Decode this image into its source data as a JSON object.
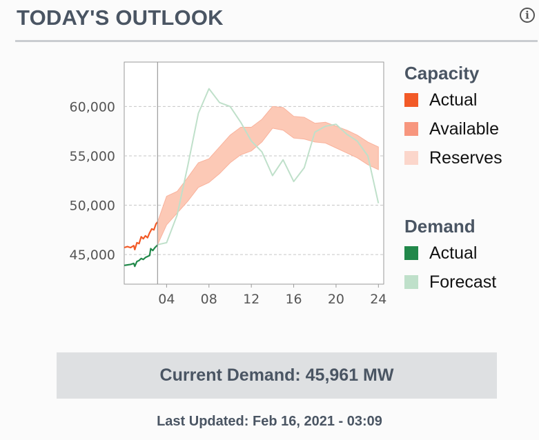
{
  "header": {
    "title": "TODAY'S OUTLOOK",
    "info_icon": "info-icon"
  },
  "legend": {
    "capacity_heading": "Capacity",
    "capacity_items": [
      {
        "label": "Actual",
        "color": "#f25a27"
      },
      {
        "label": "Available",
        "color": "#f7967e"
      },
      {
        "label": "Reserves",
        "color": "#fbd6cb"
      }
    ],
    "demand_heading": "Demand",
    "demand_items": [
      {
        "label": "Actual",
        "color": "#21884a"
      },
      {
        "label": "Forecast",
        "color": "#bfe0ca"
      }
    ]
  },
  "current_demand": "Current Demand: 45,961 MW",
  "last_updated": "Last Updated: Feb 16, 2021 - 03:09",
  "chart_data": {
    "type": "line",
    "title": "",
    "xlabel": "",
    "ylabel": "",
    "xlim": [
      0,
      24.5
    ],
    "ylim": [
      42000,
      64500
    ],
    "x_ticks": [
      4,
      8,
      12,
      16,
      20,
      24
    ],
    "x_tick_labels": [
      "04",
      "08",
      "12",
      "16",
      "20",
      "24"
    ],
    "y_ticks": [
      45000,
      50000,
      55000,
      60000
    ],
    "y_tick_labels": [
      "45,000",
      "50,000",
      "55,000",
      "60,000"
    ],
    "grid": "horizontal dashed",
    "current_time_marker": 3.15,
    "series": [
      {
        "name": "Actual",
        "group": "Capacity",
        "color": "#f25a27",
        "x": [
          0,
          0.3,
          0.6,
          0.9,
          1.0,
          1.2,
          1.4,
          1.6,
          1.8,
          2.0,
          2.2,
          2.4,
          2.6,
          2.8,
          3.0,
          3.15
        ],
        "y": [
          45700,
          45800,
          45700,
          45900,
          45500,
          46200,
          46100,
          46800,
          46600,
          46900,
          46700,
          47200,
          47600,
          47500,
          48100,
          48300
        ]
      },
      {
        "name": "Actual",
        "group": "Demand",
        "color": "#21884a",
        "x": [
          0,
          0.3,
          0.6,
          0.9,
          1.0,
          1.2,
          1.4,
          1.6,
          1.8,
          2.0,
          2.2,
          2.4,
          2.5,
          2.7,
          2.9,
          3.15
        ],
        "y": [
          43900,
          43950,
          44000,
          44100,
          43800,
          44300,
          44400,
          44600,
          44500,
          44700,
          44800,
          44900,
          45600,
          45400,
          45700,
          45961
        ]
      },
      {
        "name": "Forecast",
        "group": "Demand",
        "color": "#bfe0ca",
        "x": [
          3.15,
          4,
          5,
          6,
          7,
          8,
          9,
          10,
          11,
          12,
          13,
          14,
          15,
          16,
          17,
          18,
          19,
          20,
          21,
          22,
          23,
          24
        ],
        "y": [
          46000,
          46200,
          49000,
          54000,
          59300,
          61800,
          60400,
          60000,
          58400,
          56500,
          55400,
          53000,
          54600,
          52400,
          53800,
          57400,
          58000,
          58200,
          57200,
          56500,
          55000,
          50200
        ]
      },
      {
        "name": "Available",
        "group": "Capacity",
        "color": "#f7967e",
        "type": "band",
        "x": [
          3.15,
          4,
          5,
          6,
          7,
          8,
          9,
          10,
          11,
          12,
          13,
          14,
          15,
          16,
          17,
          18,
          19,
          20,
          21,
          22,
          23,
          24
        ],
        "upper": [
          48300,
          50900,
          51400,
          52800,
          54300,
          54700,
          55900,
          57100,
          57900,
          57900,
          58700,
          60000,
          59900,
          59000,
          58900,
          58300,
          58400,
          58000,
          57600,
          57100,
          56400,
          55900
        ],
        "lower": [
          46000,
          48000,
          49200,
          50400,
          51800,
          52300,
          53200,
          54300,
          55100,
          55500,
          56400,
          57800,
          57600,
          56800,
          56700,
          56400,
          56300,
          55800,
          55300,
          54800,
          54100,
          53600
        ]
      }
    ]
  }
}
